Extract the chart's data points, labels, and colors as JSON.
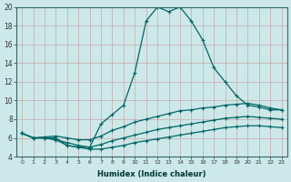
{
  "xlabel": "Humidex (Indice chaleur)",
  "bg_color": "#cce8e8",
  "line_color": "#006666",
  "grid_color": "#b0d0d0",
  "xlim": [
    -0.5,
    23.5
  ],
  "ylim": [
    4,
    20
  ],
  "xticks": [
    0,
    1,
    2,
    3,
    4,
    5,
    6,
    7,
    8,
    9,
    10,
    11,
    12,
    13,
    14,
    15,
    16,
    17,
    18,
    19,
    20,
    21,
    22,
    23
  ],
  "yticks": [
    4,
    6,
    8,
    10,
    12,
    14,
    16,
    18,
    20
  ],
  "series": [
    {
      "x": [
        0,
        1,
        2,
        3,
        4,
        5,
        6,
        7,
        8,
        9,
        10,
        11,
        12,
        13,
        14,
        15,
        16,
        17,
        18,
        19,
        20,
        21,
        22,
        23
      ],
      "y": [
        6.5,
        6.0,
        6.0,
        6.0,
        5.2,
        5.0,
        5.0,
        7.5,
        8.5,
        9.5,
        13.0,
        18.5,
        20.0,
        19.5,
        20.0,
        18.5,
        16.5,
        13.5,
        12.0,
        10.5,
        9.5,
        9.3,
        9.0,
        9.0
      ]
    },
    {
      "x": [
        0,
        1,
        2,
        3,
        4,
        5,
        6,
        7,
        8,
        9,
        10,
        11,
        12,
        13,
        14,
        15,
        16,
        17,
        18,
        19,
        20,
        21,
        22,
        23
      ],
      "y": [
        6.5,
        6.0,
        6.1,
        6.2,
        6.0,
        5.8,
        5.8,
        6.2,
        6.8,
        7.2,
        7.7,
        8.0,
        8.3,
        8.6,
        8.9,
        9.0,
        9.2,
        9.3,
        9.5,
        9.6,
        9.7,
        9.5,
        9.2,
        9.0
      ]
    },
    {
      "x": [
        0,
        1,
        2,
        3,
        4,
        5,
        6,
        7,
        8,
        9,
        10,
        11,
        12,
        13,
        14,
        15,
        16,
        17,
        18,
        19,
        20,
        21,
        22,
        23
      ],
      "y": [
        6.5,
        6.0,
        6.0,
        5.8,
        5.5,
        5.2,
        5.0,
        5.3,
        5.7,
        6.0,
        6.3,
        6.6,
        6.9,
        7.1,
        7.3,
        7.5,
        7.7,
        7.9,
        8.1,
        8.2,
        8.3,
        8.2,
        8.1,
        8.0
      ]
    },
    {
      "x": [
        0,
        1,
        2,
        3,
        4,
        5,
        6,
        7,
        8,
        9,
        10,
        11,
        12,
        13,
        14,
        15,
        16,
        17,
        18,
        19,
        20,
        21,
        22,
        23
      ],
      "y": [
        6.5,
        6.0,
        6.0,
        5.8,
        5.2,
        5.0,
        4.8,
        4.8,
        5.0,
        5.2,
        5.5,
        5.7,
        5.9,
        6.1,
        6.3,
        6.5,
        6.7,
        6.9,
        7.1,
        7.2,
        7.3,
        7.3,
        7.2,
        7.1
      ]
    }
  ]
}
